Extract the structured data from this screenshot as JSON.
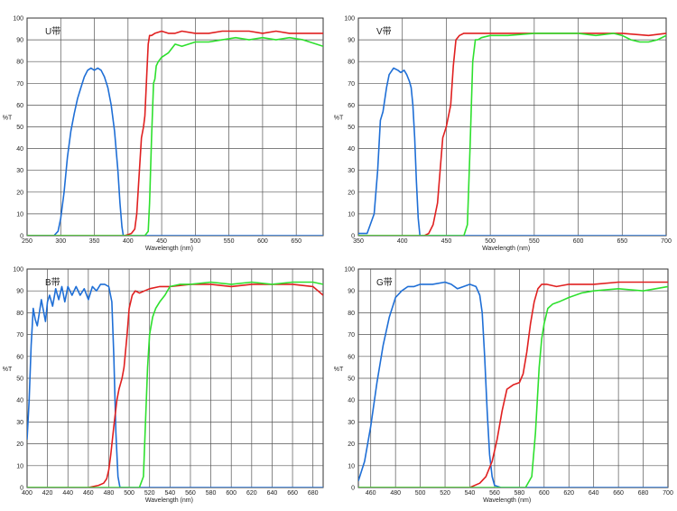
{
  "colors": {
    "blue": "#1f6fd6",
    "red": "#e02020",
    "green": "#2ee02e",
    "grid": "#555555"
  },
  "chart_data": [
    {
      "type": "line",
      "title": "U带",
      "xlabel": "Wavelength (nm)",
      "ylabel": "%T",
      "xlim": [
        250,
        690
      ],
      "ylim": [
        0,
        100
      ],
      "xticks": [
        250,
        300,
        350,
        400,
        450,
        500,
        550,
        600,
        650
      ],
      "yticks": [
        0,
        10,
        20,
        30,
        40,
        50,
        60,
        70,
        80,
        90,
        100
      ],
      "grid": true,
      "series": [
        {
          "color": "blue",
          "x": [
            250,
            290,
            296,
            300,
            305,
            310,
            315,
            320,
            325,
            330,
            335,
            340,
            345,
            350,
            355,
            360,
            365,
            370,
            375,
            380,
            385,
            388,
            391,
            393,
            395,
            400,
            690
          ],
          "y": [
            0,
            0,
            2,
            8,
            20,
            36,
            48,
            56,
            63,
            68,
            73,
            76,
            77,
            76,
            77,
            76,
            73,
            68,
            60,
            48,
            30,
            15,
            4,
            0,
            0,
            0,
            0
          ]
        },
        {
          "color": "red",
          "x": [
            250,
            395,
            405,
            410,
            413,
            416,
            420,
            423,
            425,
            428,
            430,
            432,
            435,
            440,
            450,
            460,
            470,
            480,
            500,
            520,
            540,
            560,
            580,
            600,
            620,
            640,
            660,
            690
          ],
          "y": [
            0,
            0,
            1,
            3,
            10,
            25,
            45,
            50,
            55,
            75,
            88,
            92,
            92,
            93,
            94,
            93,
            93,
            94,
            93,
            93,
            94,
            94,
            94,
            93,
            94,
            93,
            93,
            93
          ]
        },
        {
          "color": "green",
          "x": [
            250,
            425,
            430,
            432,
            435,
            438,
            440,
            442,
            445,
            450,
            460,
            470,
            480,
            500,
            520,
            540,
            560,
            580,
            600,
            620,
            640,
            660,
            680,
            690
          ],
          "y": [
            0,
            0,
            2,
            15,
            45,
            70,
            72,
            78,
            80,
            82,
            84,
            88,
            87,
            89,
            89,
            90,
            91,
            90,
            91,
            90,
            91,
            90,
            88,
            87
          ]
        }
      ]
    },
    {
      "type": "line",
      "title": "V带",
      "xlabel": "Wavelength (nm)",
      "ylabel": "%T",
      "xlim": [
        350,
        700
      ],
      "ylim": [
        0,
        100
      ],
      "xticks": [
        350,
        400,
        450,
        500,
        550,
        600,
        650,
        700
      ],
      "yticks": [
        0,
        10,
        20,
        30,
        40,
        50,
        60,
        70,
        80,
        90,
        100
      ],
      "grid": true,
      "series": [
        {
          "color": "blue",
          "x": [
            350,
            360,
            368,
            372,
            375,
            378,
            382,
            385,
            390,
            395,
            398,
            402,
            405,
            408,
            410,
            412,
            414,
            416,
            418,
            420,
            700
          ],
          "y": [
            1,
            1,
            10,
            30,
            53,
            57,
            68,
            74,
            77,
            76,
            75,
            76,
            74,
            71,
            68,
            60,
            45,
            25,
            8,
            0,
            0
          ]
        },
        {
          "color": "red",
          "x": [
            350,
            425,
            430,
            435,
            440,
            443,
            446,
            450,
            455,
            458,
            461,
            465,
            470,
            480,
            500,
            520,
            550,
            580,
            600,
            620,
            650,
            680,
            700
          ],
          "y": [
            0,
            0,
            1,
            5,
            15,
            30,
            45,
            50,
            60,
            78,
            90,
            92,
            93,
            93,
            93,
            93,
            93,
            93,
            93,
            93,
            93,
            92,
            93
          ]
        },
        {
          "color": "green",
          "x": [
            350,
            470,
            474,
            477,
            480,
            483,
            486,
            490,
            500,
            520,
            550,
            580,
            600,
            620,
            640,
            650,
            660,
            670,
            680,
            690,
            700
          ],
          "y": [
            0,
            0,
            5,
            40,
            80,
            90,
            90,
            91,
            92,
            92,
            93,
            93,
            93,
            92,
            93,
            92,
            90,
            89,
            89,
            90,
            92
          ]
        }
      ]
    },
    {
      "type": "line",
      "title": "B带",
      "xlabel": "Wavelength (nm)",
      "ylabel": "%T",
      "xlim": [
        400,
        690
      ],
      "ylim": [
        0,
        100
      ],
      "xticks": [
        400,
        420,
        440,
        460,
        480,
        500,
        520,
        540,
        560,
        580,
        600,
        620,
        640,
        660,
        680
      ],
      "yticks": [
        0,
        10,
        20,
        30,
        40,
        50,
        60,
        70,
        80,
        90,
        100
      ],
      "grid": true,
      "series": [
        {
          "color": "blue",
          "x": [
            400,
            402,
            404,
            406,
            408,
            410,
            412,
            414,
            416,
            418,
            420,
            422,
            425,
            428,
            431,
            434,
            437,
            440,
            444,
            448,
            452,
            456,
            460,
            464,
            468,
            472,
            476,
            480,
            483,
            485,
            487,
            489,
            491,
            495,
            690
          ],
          "y": [
            22,
            40,
            65,
            82,
            77,
            74,
            80,
            86,
            81,
            76,
            85,
            88,
            83,
            91,
            86,
            92,
            85,
            92,
            88,
            92,
            88,
            91,
            86,
            92,
            90,
            93,
            93,
            92,
            85,
            60,
            25,
            5,
            0,
            0,
            0
          ]
        },
        {
          "color": "red",
          "x": [
            400,
            460,
            470,
            475,
            478,
            480,
            482,
            485,
            488,
            490,
            493,
            495,
            498,
            500,
            503,
            506,
            510,
            515,
            520,
            530,
            540,
            560,
            580,
            600,
            620,
            640,
            660,
            680,
            690
          ],
          "y": [
            0,
            0,
            1,
            2,
            4,
            8,
            15,
            28,
            40,
            45,
            50,
            55,
            70,
            82,
            88,
            90,
            89,
            90,
            91,
            92,
            92,
            93,
            93,
            92,
            93,
            93,
            93,
            92,
            88
          ]
        },
        {
          "color": "green",
          "x": [
            400,
            510,
            514,
            516,
            518,
            520,
            523,
            526,
            530,
            535,
            540,
            550,
            560,
            580,
            600,
            620,
            640,
            660,
            680,
            690
          ],
          "y": [
            0,
            0,
            5,
            30,
            55,
            70,
            78,
            82,
            85,
            88,
            92,
            93,
            93,
            94,
            93,
            94,
            93,
            94,
            94,
            93
          ]
        }
      ]
    },
    {
      "type": "line",
      "title": "G带",
      "xlabel": "Wavelength (nm)",
      "ylabel": "%T",
      "xlim": [
        450,
        700
      ],
      "ylim": [
        0,
        100
      ],
      "xticks": [
        460,
        480,
        500,
        520,
        540,
        560,
        580,
        600,
        620,
        640,
        660,
        680,
        700
      ],
      "yticks": [
        0,
        10,
        20,
        30,
        40,
        50,
        60,
        70,
        80,
        90,
        100
      ],
      "grid": true,
      "series": [
        {
          "color": "blue",
          "x": [
            450,
            455,
            460,
            465,
            470,
            475,
            480,
            485,
            490,
            495,
            500,
            510,
            520,
            525,
            530,
            535,
            540,
            545,
            548,
            550,
            552,
            554,
            556,
            558,
            560,
            565,
            700
          ],
          "y": [
            3,
            12,
            28,
            48,
            65,
            78,
            87,
            90,
            92,
            92,
            93,
            93,
            94,
            93,
            91,
            92,
            93,
            92,
            88,
            80,
            60,
            35,
            15,
            5,
            1,
            0,
            0
          ]
        },
        {
          "color": "red",
          "x": [
            450,
            540,
            548,
            553,
            558,
            562,
            566,
            570,
            575,
            580,
            583,
            586,
            589,
            592,
            595,
            598,
            602,
            610,
            620,
            640,
            660,
            680,
            700
          ],
          "y": [
            0,
            0,
            2,
            5,
            12,
            22,
            35,
            45,
            47,
            48,
            52,
            62,
            75,
            85,
            91,
            93,
            93,
            92,
            93,
            93,
            94,
            94,
            94
          ]
        },
        {
          "color": "green",
          "x": [
            450,
            585,
            590,
            593,
            596,
            598,
            600,
            603,
            607,
            612,
            620,
            630,
            640,
            660,
            680,
            700
          ],
          "y": [
            0,
            0,
            5,
            25,
            55,
            68,
            75,
            82,
            84,
            85,
            87,
            89,
            90,
            91,
            90,
            92
          ]
        }
      ]
    }
  ]
}
